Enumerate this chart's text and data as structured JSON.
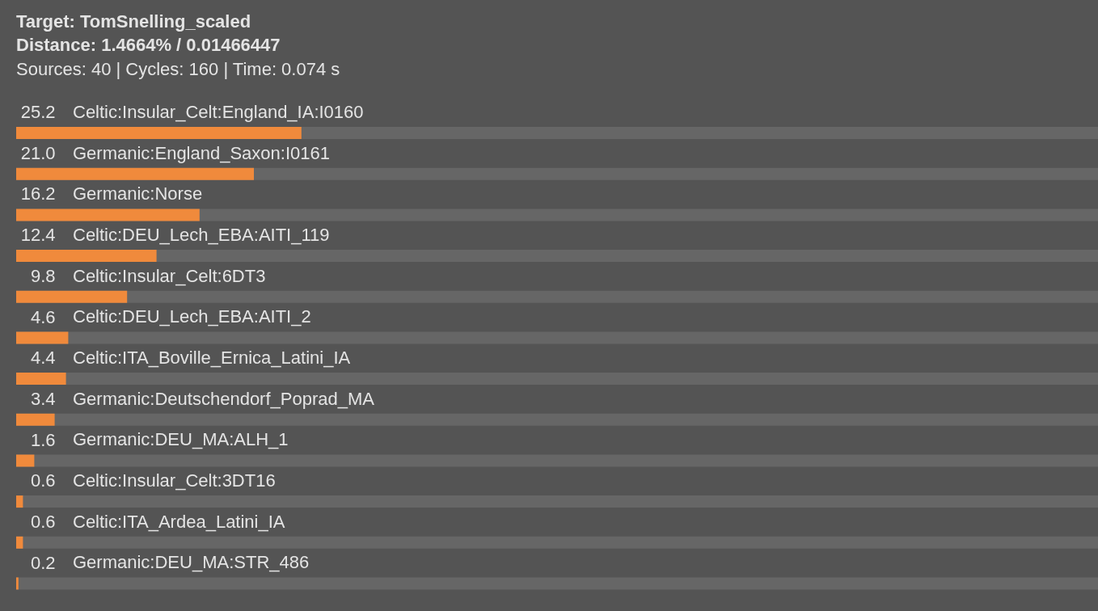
{
  "chart_data": {
    "type": "bar",
    "orientation": "horizontal",
    "title": "Target: TomSnelling_scaled",
    "subtitle": "Distance: 1.4664% / 0.01466447",
    "annotations": [
      "Sources: 40 | Cycles: 160 | Time: 0.074 s"
    ],
    "categories": [
      "Celtic:Insular_Celt:England_IA:I0160",
      "Germanic:England_Saxon:I0161",
      "Germanic:Norse",
      "Celtic:DEU_Lech_EBA:AITI_119",
      "Celtic:Insular_Celt:6DT3",
      "Celtic:DEU_Lech_EBA:AITI_2",
      "Celtic:ITA_Boville_Ernica_Latini_IA",
      "Germanic:Deutschendorf_Poprad_MA",
      "Germanic:DEU_MA:ALH_1",
      "Celtic:Insular_Celt:3DT16",
      "Celtic:ITA_Ardea_Latini_IA",
      "Germanic:DEU_MA:STR_486"
    ],
    "values": [
      25.2,
      21.0,
      16.2,
      12.4,
      9.8,
      4.6,
      4.4,
      3.4,
      1.6,
      0.6,
      0.6,
      0.2
    ],
    "value_labels": [
      "25.2",
      "21.0",
      "16.2",
      "12.4",
      "9.8",
      "4.6",
      "4.4",
      "3.4",
      "1.6",
      "0.6",
      "0.6",
      "0.2"
    ],
    "color": "#f08a3c",
    "xlim": [
      0,
      100
    ],
    "tick_labels": "y"
  }
}
